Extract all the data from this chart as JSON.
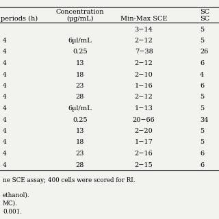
{
  "header_conc": "Concentration",
  "header_conc_unit": "(μg/mL)",
  "header_periods": "periods (h)",
  "header_minmax": "Min-Max SCE",
  "header_sc": "SC",
  "rows": [
    [
      "",
      "",
      "3−14",
      "5"
    ],
    [
      "4",
      "6µl/mL",
      "2−12",
      "5"
    ],
    [
      "4",
      "0.25",
      "7−38",
      "26"
    ],
    [
      "4",
      "13",
      "2−12",
      "6"
    ],
    [
      "4",
      "18",
      "2−10",
      "4"
    ],
    [
      "4",
      "23",
      "1−16",
      "6"
    ],
    [
      "4",
      "28",
      "2−12",
      "5"
    ],
    [
      "4",
      "6µl/mL",
      "1−13",
      "5"
    ],
    [
      "4",
      "0.25",
      "20−66",
      "34"
    ],
    [
      "4",
      "13",
      "2−20",
      "5"
    ],
    [
      "4",
      "18",
      "1−17",
      "5"
    ],
    [
      "4",
      "23",
      "2−16",
      "6"
    ],
    [
      "4",
      "28",
      "2−15",
      "6"
    ]
  ],
  "footnotes": [
    "ne SCE assay; 400 cells were scored for RI.",
    "ethanol).",
    "MC).",
    "0.001."
  ],
  "bg_color": "#f2f2ee",
  "font_size": 7.0,
  "fn_font_size": 6.3
}
